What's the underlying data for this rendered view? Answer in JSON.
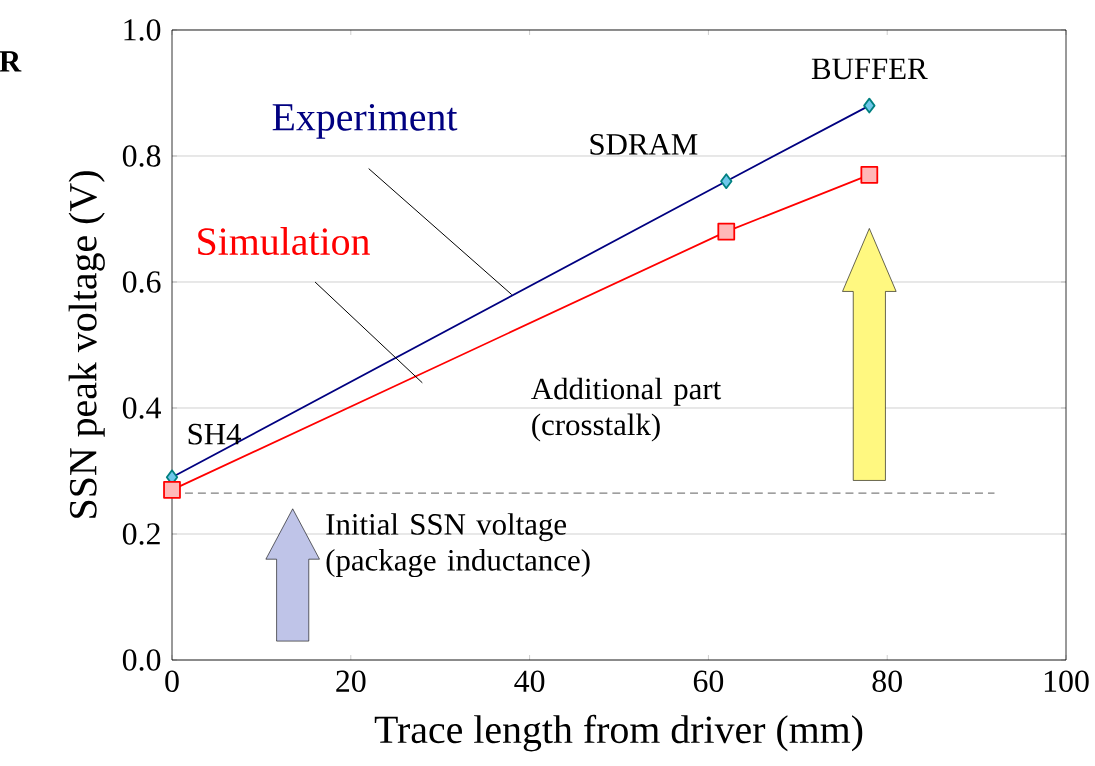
{
  "chart_data": {
    "type": "line",
    "xlabel": "Trace length from driver (mm)",
    "ylabel": "SSN peak voltage (V)",
    "x": [
      0,
      62,
      78
    ],
    "series": [
      {
        "name": "Experiment",
        "color": "#000080",
        "marker": "diamond",
        "values": [
          0.29,
          0.76,
          0.88
        ]
      },
      {
        "name": "Simulation",
        "color": "#ff0000",
        "marker": "square",
        "values": [
          0.27,
          0.68,
          0.77
        ]
      }
    ],
    "xlim": [
      0,
      100
    ],
    "xticks": [
      0,
      20,
      40,
      60,
      80,
      100
    ],
    "ylim": [
      0,
      1
    ],
    "yticks": [
      {
        "value": 0,
        "label": "0.0"
      },
      {
        "value": 0.2,
        "label": "0.2"
      },
      {
        "value": 0.4,
        "label": "0.4"
      },
      {
        "value": 0.6,
        "label": "0.6"
      },
      {
        "value": 0.8,
        "label": "0.8"
      },
      {
        "value": 1,
        "label": "1.0"
      }
    ],
    "grid": "y",
    "line_style": "solid",
    "ref_lines": [
      {
        "axis": "y",
        "value": 0.265,
        "color": "#808080",
        "line_style": "dashed"
      }
    ],
    "annotations": [
      "R",
      {
        "text": "SH4",
        "x": 0,
        "y": 0.29
      },
      {
        "text": "SDRAM",
        "x": 62,
        "y": 0.76
      },
      {
        "text": "BUFFER",
        "x": 78,
        "y": 0.88
      },
      "Additional part (crosstalk)",
      "Initial SSN voltage (package inductance)"
    ]
  }
}
